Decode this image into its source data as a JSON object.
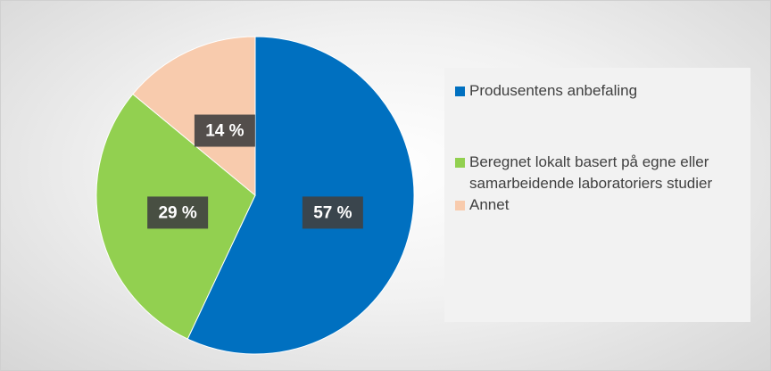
{
  "chart_data": {
    "type": "pie",
    "categories": [
      "Produsentens anbefaling",
      "Beregnet lokalt basert på egne eller samarbeidende laboratoriers studier",
      "Annet"
    ],
    "values": [
      57,
      29,
      14
    ],
    "value_labels": [
      "57 %",
      "29 %",
      "14 %"
    ],
    "colors": [
      "#0070c0",
      "#92d050",
      "#f8cbad"
    ],
    "legend": "right"
  }
}
